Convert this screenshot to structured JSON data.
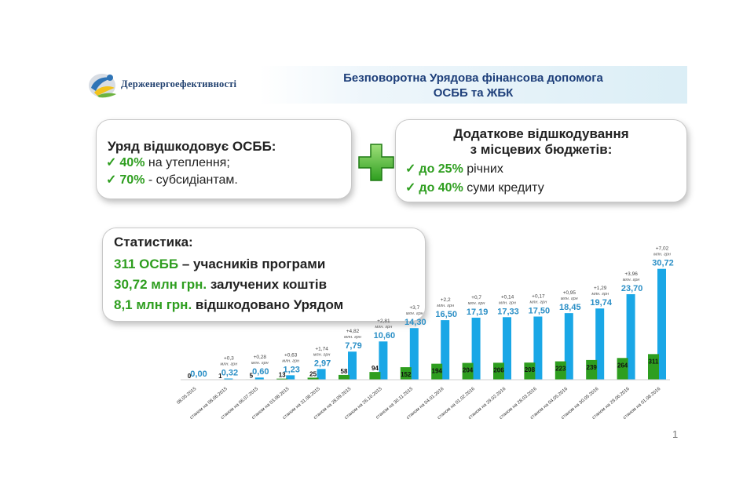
{
  "header": {
    "logo_text": "Держенергоефективності",
    "title_line1": "Безповоротна Урядова фінансова допомога",
    "title_line2": "ОСББ та ЖБК"
  },
  "left_box": {
    "heading": "Уряд відшкодовує ОСББ:",
    "items": [
      {
        "pct": "40%",
        "text": " на утеплення;"
      },
      {
        "pct": "70%",
        "text": " - субсидіантам."
      }
    ]
  },
  "right_box": {
    "heading_line1": "Додаткове відшкодування",
    "heading_line2": "з місцевих бюджетів:",
    "items": [
      {
        "pct": "до 25%",
        "text": " річних"
      },
      {
        "pct": "до 40%",
        "text": " суми кредиту"
      }
    ]
  },
  "stats": {
    "heading": "Статистика:",
    "lines": [
      {
        "value": "311 ОСББ",
        "text": " – учасників програми"
      },
      {
        "value": "30,72 млн грн.",
        "text": " залучених коштів"
      },
      {
        "value": "8,1 млн грн.",
        "text": " відшкодовано Урядом"
      }
    ]
  },
  "page_number": "1",
  "colors": {
    "green": "#2e9e1f",
    "blue": "#1aa7e6",
    "blue_label": "#2b8fc6",
    "title_blue": "#1e3f7a"
  },
  "chart_data": {
    "type": "bar",
    "categories": [
      "08.05.2015",
      "станом на 08.06.2015",
      "станом на 06.07.2015",
      "станом на 03.08.2015",
      "станом на 31.08.2015",
      "станом на 28.09.2015",
      "станом на 26.10.2015",
      "станом на 30.11.2015",
      "станом на 04.01.2016",
      "станом на 01.02.2016",
      "станом на 29.02.2016",
      "станом на 28.03.2016",
      "станом на 04.05.2016",
      "станом на 30.05.2016",
      "станом на 29.06.2016",
      "станом на 01.08.2016"
    ],
    "series": [
      {
        "values": [
          0,
          1,
          5,
          13,
          25,
          58,
          94,
          152,
          194,
          204,
          206,
          208,
          223,
          239,
          264,
          311
        ]
      },
      {
        "values": [
          0.0,
          0.32,
          0.6,
          1.23,
          2.97,
          7.79,
          10.6,
          14.3,
          16.5,
          17.19,
          17.33,
          17.5,
          18.45,
          19.74,
          23.7,
          30.72
        ]
      }
    ],
    "count_labels": [
      "0",
      "1",
      "5",
      "13",
      "25",
      "58",
      "94",
      "152",
      "194",
      "204",
      "206",
      "208",
      "223",
      "239",
      "264",
      "311"
    ],
    "amount_labels": [
      "0,00",
      "0,32",
      "0,60",
      "1,23",
      "2,97",
      "7,79",
      "10,60",
      "14,30",
      "16,50",
      "17,19",
      "17,33",
      "17,50",
      "18,45",
      "19,74",
      "23,70",
      "30,72"
    ],
    "increments": [
      "",
      "+0,3",
      "+0,28",
      "+0,63",
      "+1,74",
      "+4,82",
      "+2,81",
      "+3,7",
      "+2,2",
      "+0,7",
      "+0,14",
      "+0,17",
      "+0,95",
      "+1,29",
      "+3,96",
      "+7,02"
    ],
    "increment_unit": "млн. грн"
  }
}
